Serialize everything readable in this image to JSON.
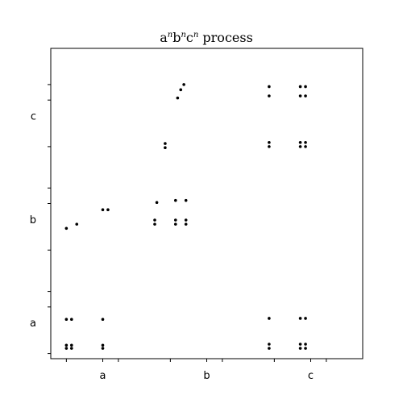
{
  "chart_data": {
    "type": "scatter",
    "title": {
      "prefix": "a",
      "sup1": "n",
      "mid1": "b",
      "sup2": "n",
      "mid2": "c",
      "sup3": "n",
      "suffix": " process"
    },
    "xlabel": "",
    "ylabel": "",
    "xlim": [
      0,
      3
    ],
    "ylim": [
      0,
      3
    ],
    "x_ticks": [
      0.15,
      0.5,
      0.65,
      1.15,
      1.5,
      1.65,
      2.15,
      2.5,
      2.65
    ],
    "y_ticks": [
      0.05,
      0.5,
      0.65,
      1.05,
      1.5,
      1.65,
      2.05,
      2.5,
      2.65
    ],
    "x_tick_labels": [
      {
        "value": 0.5,
        "label": "a"
      },
      {
        "value": 1.5,
        "label": "b"
      },
      {
        "value": 2.5,
        "label": "c"
      }
    ],
    "y_tick_labels": [
      {
        "value": 0.35,
        "label": "a"
      },
      {
        "value": 1.35,
        "label": "b"
      },
      {
        "value": 2.35,
        "label": "c"
      }
    ],
    "grid": false,
    "points": [
      {
        "x": 0.15,
        "y": 0.38
      },
      {
        "x": 0.15,
        "y": 0.13
      },
      {
        "x": 0.15,
        "y": 0.1
      },
      {
        "x": 0.2,
        "y": 0.38
      },
      {
        "x": 0.2,
        "y": 0.13
      },
      {
        "x": 0.2,
        "y": 0.1
      },
      {
        "x": 0.5,
        "y": 0.38
      },
      {
        "x": 0.5,
        "y": 0.13
      },
      {
        "x": 0.5,
        "y": 0.1
      },
      {
        "x": 0.15,
        "y": 1.26
      },
      {
        "x": 0.25,
        "y": 1.3
      },
      {
        "x": 0.5,
        "y": 1.44
      },
      {
        "x": 0.55,
        "y": 1.44
      },
      {
        "x": 1.0,
        "y": 1.3
      },
      {
        "x": 1.2,
        "y": 1.3
      },
      {
        "x": 1.3,
        "y": 1.3
      },
      {
        "x": 1.0,
        "y": 1.34
      },
      {
        "x": 1.2,
        "y": 1.34
      },
      {
        "x": 1.3,
        "y": 1.34
      },
      {
        "x": 1.02,
        "y": 1.51
      },
      {
        "x": 1.2,
        "y": 1.53
      },
      {
        "x": 1.3,
        "y": 1.53
      },
      {
        "x": 1.1,
        "y": 2.08
      },
      {
        "x": 1.1,
        "y": 2.04
      },
      {
        "x": 1.22,
        "y": 2.52
      },
      {
        "x": 1.25,
        "y": 2.6
      },
      {
        "x": 1.28,
        "y": 2.65
      },
      {
        "x": 2.1,
        "y": 0.39
      },
      {
        "x": 2.1,
        "y": 0.14
      },
      {
        "x": 2.1,
        "y": 0.1
      },
      {
        "x": 2.4,
        "y": 0.39
      },
      {
        "x": 2.4,
        "y": 0.14
      },
      {
        "x": 2.4,
        "y": 0.1
      },
      {
        "x": 2.45,
        "y": 0.39
      },
      {
        "x": 2.45,
        "y": 0.14
      },
      {
        "x": 2.45,
        "y": 0.1
      },
      {
        "x": 2.1,
        "y": 2.05
      },
      {
        "x": 2.1,
        "y": 2.09
      },
      {
        "x": 2.1,
        "y": 2.54
      },
      {
        "x": 2.1,
        "y": 2.63
      },
      {
        "x": 2.4,
        "y": 2.05
      },
      {
        "x": 2.4,
        "y": 2.09
      },
      {
        "x": 2.4,
        "y": 2.54
      },
      {
        "x": 2.4,
        "y": 2.63
      },
      {
        "x": 2.45,
        "y": 2.05
      },
      {
        "x": 2.45,
        "y": 2.09
      },
      {
        "x": 2.45,
        "y": 2.54
      },
      {
        "x": 2.45,
        "y": 2.63
      }
    ]
  }
}
